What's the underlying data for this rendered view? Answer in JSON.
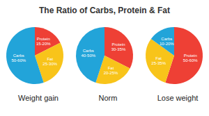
{
  "title": "The Ratio of Carbs, Protein & Fat",
  "chart_data": [
    {
      "type": "pie",
      "title": "Weight gain",
      "categories": [
        "Protein",
        "Fat",
        "Carbs"
      ],
      "values": [
        17.5,
        27.5,
        55
      ],
      "value_labels": [
        "15-20%",
        "25-30%",
        "50-60%"
      ],
      "colors": [
        "#ee4035",
        "#f8c41a",
        "#22a4d9"
      ],
      "data_labels": true
    },
    {
      "type": "pie",
      "title": "Norm",
      "categories": [
        "Protein",
        "Fat",
        "Carbs"
      ],
      "values": [
        32.5,
        22.5,
        45
      ],
      "value_labels": [
        "30-35%",
        "20-25%",
        "40-50%"
      ],
      "colors": [
        "#ee4035",
        "#f8c41a",
        "#22a4d9"
      ],
      "data_labels": true
    },
    {
      "type": "pie",
      "title": "Lose weight",
      "categories": [
        "Protein",
        "Fat",
        "Carbs"
      ],
      "values": [
        55,
        30,
        15
      ],
      "value_labels": [
        "50-60%",
        "25-35%",
        "10-20%"
      ],
      "colors": [
        "#ee4035",
        "#f8c41a",
        "#22a4d9"
      ],
      "data_labels": true
    }
  ]
}
